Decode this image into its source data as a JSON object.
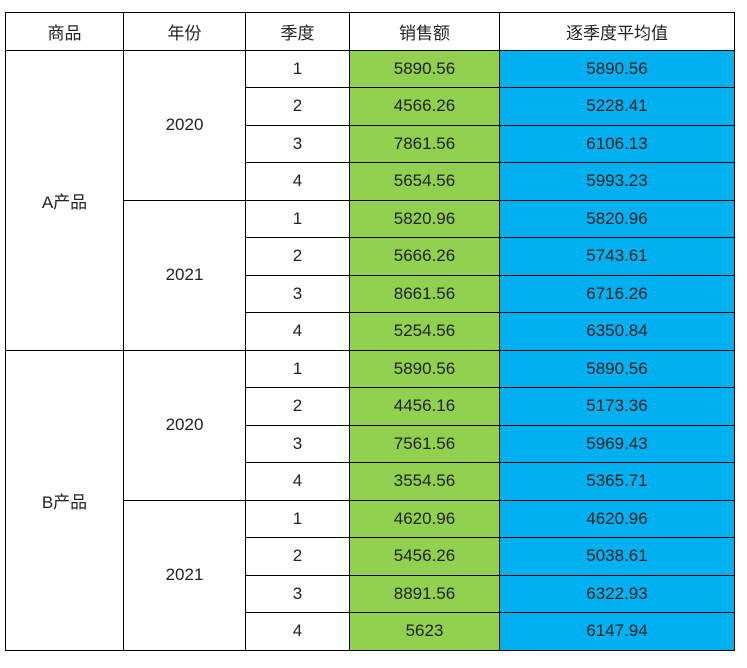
{
  "table": {
    "header": [
      "商品",
      "年份",
      "季度",
      "销售额",
      "逐季度平均值"
    ],
    "products": [
      {
        "name": "A产品",
        "years": [
          {
            "year": "2020",
            "rows": [
              [
                "1",
                "5890.56",
                "5890.56"
              ],
              [
                "2",
                "4566.26",
                "5228.41"
              ],
              [
                "3",
                "7861.56",
                "6106.13"
              ],
              [
                "4",
                "5654.56",
                "5993.23"
              ]
            ]
          },
          {
            "year": "2021",
            "rows": [
              [
                "1",
                "5820.96",
                "5820.96"
              ],
              [
                "2",
                "5666.26",
                "5743.61"
              ],
              [
                "3",
                "8661.56",
                "6716.26"
              ],
              [
                "4",
                "5254.56",
                "6350.84"
              ]
            ]
          }
        ]
      },
      {
        "name": "B产品",
        "years": [
          {
            "year": "2020",
            "rows": [
              [
                "1",
                "5890.56",
                "5890.56"
              ],
              [
                "2",
                "4456.16",
                "5173.36"
              ],
              [
                "3",
                "7561.56",
                "5969.43"
              ],
              [
                "4",
                "3554.56",
                "5365.71"
              ]
            ]
          },
          {
            "year": "2021",
            "rows": [
              [
                "1",
                "4620.96",
                "4620.96"
              ],
              [
                "2",
                "5456.26",
                "5038.61"
              ],
              [
                "3",
                "8891.56",
                "6322.93"
              ],
              [
                "4",
                "5623",
                "6147.94"
              ]
            ]
          }
        ]
      }
    ]
  }
}
